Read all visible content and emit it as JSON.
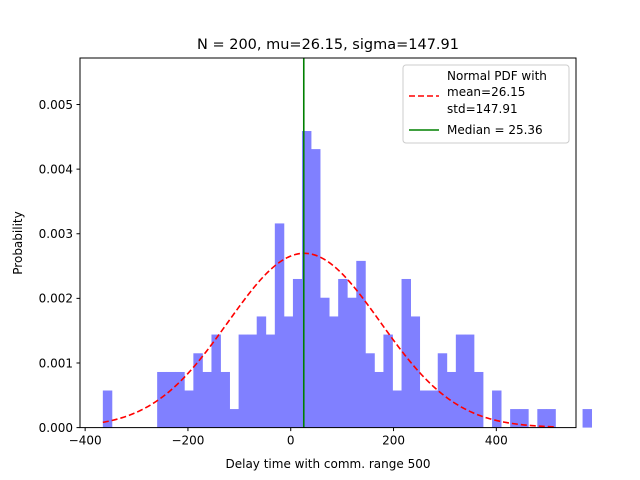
{
  "chart_data": {
    "type": "bar",
    "title": "N = 200, mu=26.15, sigma=147.91",
    "xlabel": "Delay time with comm. range 500",
    "ylabel": "Probability",
    "xlim": [
      -410,
      555
    ],
    "ylim": [
      0,
      0.00572
    ],
    "xticks": [
      -400,
      -200,
      0,
      200,
      400
    ],
    "xtick_labels": [
      "−400",
      "−200",
      "0",
      "200",
      "400"
    ],
    "yticks": [
      0,
      0.001,
      0.002,
      0.003,
      0.004,
      0.005
    ],
    "ytick_labels": [
      "0.000",
      "0.001",
      "0.002",
      "0.003",
      "0.004",
      "0.005"
    ],
    "grid": false,
    "legend_position": "upper right",
    "histogram": {
      "name": "Delay time",
      "color": "#8080ff",
      "bin_start": -365.56,
      "bin_width": 17.61,
      "values": [
        0.000574,
        0,
        0,
        0,
        0,
        0,
        0.000861,
        0.000861,
        0.000861,
        0.000574,
        0.00115,
        0.000861,
        0.00144,
        0.000861,
        0.000287,
        0.00144,
        0.00144,
        0.00172,
        0.00144,
        0.00316,
        0.00172,
        0.0023,
        0.00459,
        0.00431,
        0.00201,
        0.00172,
        0.0023,
        0.00201,
        0.00258,
        0.00115,
        0.000861,
        0.00144,
        0.000574,
        0.0023,
        0.00172,
        0.000574,
        0.000574,
        0.00115,
        0.000861,
        0.00144,
        0.00144,
        0.000861,
        0,
        0.000574,
        0,
        0.000287,
        0.000287,
        0,
        0.000287,
        0.000287,
        0,
        0,
        0,
        0.000287
      ]
    },
    "pdf": {
      "name_lines": [
        "Normal PDF with",
        "mean=26.15",
        "std=147.91"
      ],
      "mean": 26.15,
      "std": 147.91,
      "x_from": -365.56,
      "x_to": 515.5,
      "color": "#ff0000",
      "style": "dashed"
    },
    "median": {
      "name": "Median = 25.36",
      "value": 25.36,
      "color": "#008000"
    }
  }
}
